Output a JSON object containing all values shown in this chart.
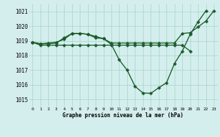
{
  "background_color": "#d4eeed",
  "grid_color": "#a8d8cc",
  "line_color": "#1a5c2a",
  "xlabel": "Graphe pression niveau de la mer (hPa)",
  "ylim": [
    1014.5,
    1021.5
  ],
  "yticks": [
    1015,
    1016,
    1017,
    1018,
    1019,
    1020,
    1021
  ],
  "xticks": [
    0,
    1,
    2,
    3,
    4,
    5,
    6,
    7,
    8,
    9,
    10,
    11,
    12,
    13,
    14,
    15,
    16,
    17,
    18,
    19,
    20,
    21,
    22,
    23
  ],
  "marker_size": 2.5,
  "line_width": 1.0,
  "line_a_x": [
    0,
    1,
    2,
    3,
    4,
    5,
    6,
    7,
    8,
    9,
    10,
    11,
    12,
    13,
    14,
    15,
    16,
    17,
    18,
    19,
    20
  ],
  "line_a_y": [
    1018.9,
    1018.7,
    1018.7,
    1018.7,
    1018.7,
    1018.7,
    1018.7,
    1018.7,
    1018.7,
    1018.7,
    1018.7,
    1018.7,
    1018.7,
    1018.7,
    1018.7,
    1018.7,
    1018.7,
    1018.7,
    1018.7,
    1018.7,
    1018.3
  ],
  "line_b_x": [
    0,
    1,
    2,
    3,
    4,
    5,
    6,
    7,
    8,
    9,
    10,
    11,
    12,
    13,
    14,
    15,
    16,
    17,
    18,
    19,
    20,
    21,
    22,
    23
  ],
  "line_b_y": [
    1018.9,
    1018.8,
    1018.85,
    1018.9,
    1019.1,
    1019.5,
    1019.5,
    1019.45,
    1019.3,
    1019.15,
    1018.85,
    1018.85,
    1018.85,
    1018.85,
    1018.85,
    1018.85,
    1018.85,
    1018.85,
    1018.85,
    1019.5,
    1019.55,
    1019.95,
    1020.35,
    1021.05
  ],
  "line_c_x": [
    0,
    1,
    2,
    3,
    4,
    5,
    6,
    7,
    8,
    9,
    10,
    11,
    12,
    13,
    14,
    15,
    16,
    17,
    18,
    19,
    20,
    21,
    22
  ],
  "line_c_y": [
    1018.9,
    1018.8,
    1018.8,
    1018.85,
    1019.2,
    1019.5,
    1019.5,
    1019.45,
    1019.2,
    1019.15,
    1018.75,
    1017.7,
    1017.0,
    1015.9,
    1015.45,
    1015.42,
    1015.8,
    1016.15,
    1017.45,
    1018.3,
    1019.45,
    1020.3,
    1021.05
  ]
}
